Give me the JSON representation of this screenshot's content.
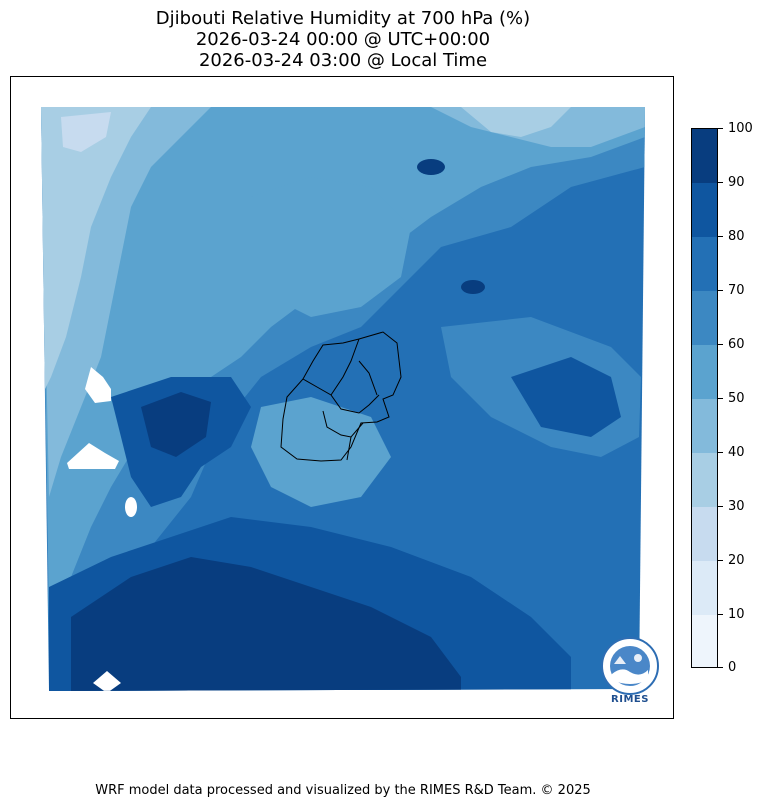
{
  "title": {
    "line1": "Djibouti Relative Humidity at 700 hPa (%)",
    "line2": "2026-03-24 00:00 @ UTC+00:00",
    "line3": "2026-03-24 03:00 @ Local Time"
  },
  "colorbar": {
    "ticks": [
      "0",
      "10",
      "20",
      "30",
      "40",
      "50",
      "60",
      "70",
      "80",
      "90",
      "100"
    ],
    "colors": [
      "#eef5fc",
      "#dceaf7",
      "#c7dbef",
      "#a8cee4",
      "#83badb",
      "#5ba3cf",
      "#3c88c2",
      "#2370b5",
      "#0f56a0",
      "#083d7f"
    ]
  },
  "map": {
    "variable": "relative humidity",
    "units": "%",
    "level_hpa": 700
  },
  "logo": {
    "text": "RIMES"
  },
  "footer": {
    "text": "WRF model data processed and visualized by the RIMES R&D Team. © 2025"
  }
}
